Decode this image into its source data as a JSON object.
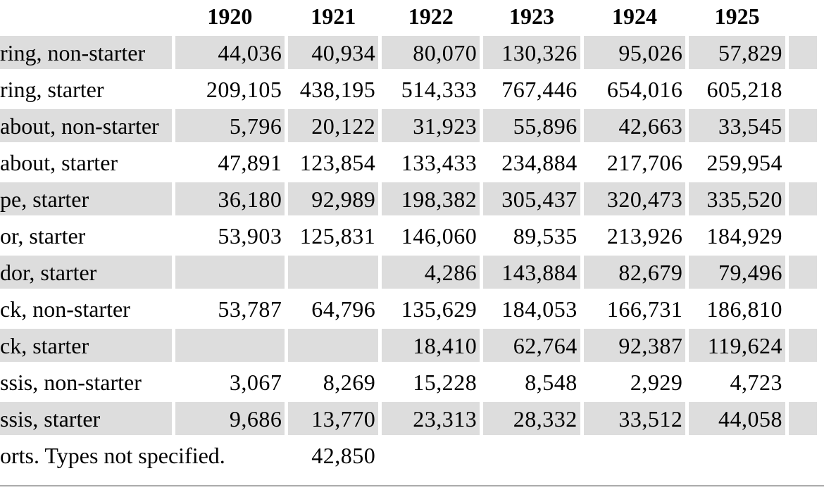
{
  "table": {
    "years": [
      "1920",
      "1921",
      "1922",
      "1923",
      "1924",
      "1925"
    ],
    "rows": [
      {
        "label": "ring, non-starter",
        "shaded": true,
        "values": [
          "44,036",
          "40,934",
          "80,070",
          "130,326",
          "95,026",
          "57,829"
        ]
      },
      {
        "label": "ring, starter",
        "shaded": false,
        "values": [
          "209,105",
          "438,195",
          "514,333",
          "767,446",
          "654,016",
          "605,218"
        ]
      },
      {
        "label": "about, non-starter",
        "shaded": true,
        "values": [
          "5,796",
          "20,122",
          "31,923",
          "55,896",
          "42,663",
          "33,545"
        ]
      },
      {
        "label": "about, starter",
        "shaded": false,
        "values": [
          "47,891",
          "123,854",
          "133,433",
          "234,884",
          "217,706",
          "259,954"
        ]
      },
      {
        "label": "pe, starter",
        "shaded": true,
        "values": [
          "36,180",
          "92,989",
          "198,382",
          "305,437",
          "320,473",
          "335,520"
        ]
      },
      {
        "label": "or, starter",
        "shaded": false,
        "values": [
          "53,903",
          "125,831",
          "146,060",
          "89,535",
          "213,926",
          "184,929"
        ]
      },
      {
        "label": "dor, starter",
        "shaded": true,
        "values": [
          "",
          "",
          "4,286",
          "143,884",
          "82,679",
          "79,496"
        ]
      },
      {
        "label": "ck, non-starter",
        "shaded": false,
        "values": [
          "53,787",
          "64,796",
          "135,629",
          "184,053",
          "166,731",
          "186,810"
        ]
      },
      {
        "label": "ck, starter",
        "shaded": true,
        "values": [
          "",
          "",
          "18,410",
          "62,764",
          "92,387",
          "119,624"
        ]
      },
      {
        "label": "ssis, non-starter",
        "shaded": false,
        "values": [
          "3,067",
          "8,269",
          "15,228",
          "8,548",
          "2,929",
          "4,723"
        ]
      },
      {
        "label": "ssis, starter",
        "shaded": true,
        "values": [
          "9,686",
          "13,770",
          "23,313",
          "28,332",
          "33,512",
          "44,058"
        ]
      },
      {
        "label": "orts. Types not specified.",
        "shaded": false,
        "label_colspan": 2,
        "values": [
          "42,850",
          "",
          "",
          "",
          ""
        ]
      }
    ],
    "colors": {
      "row_shade": "#dddddd",
      "rule": "#ababab"
    }
  }
}
